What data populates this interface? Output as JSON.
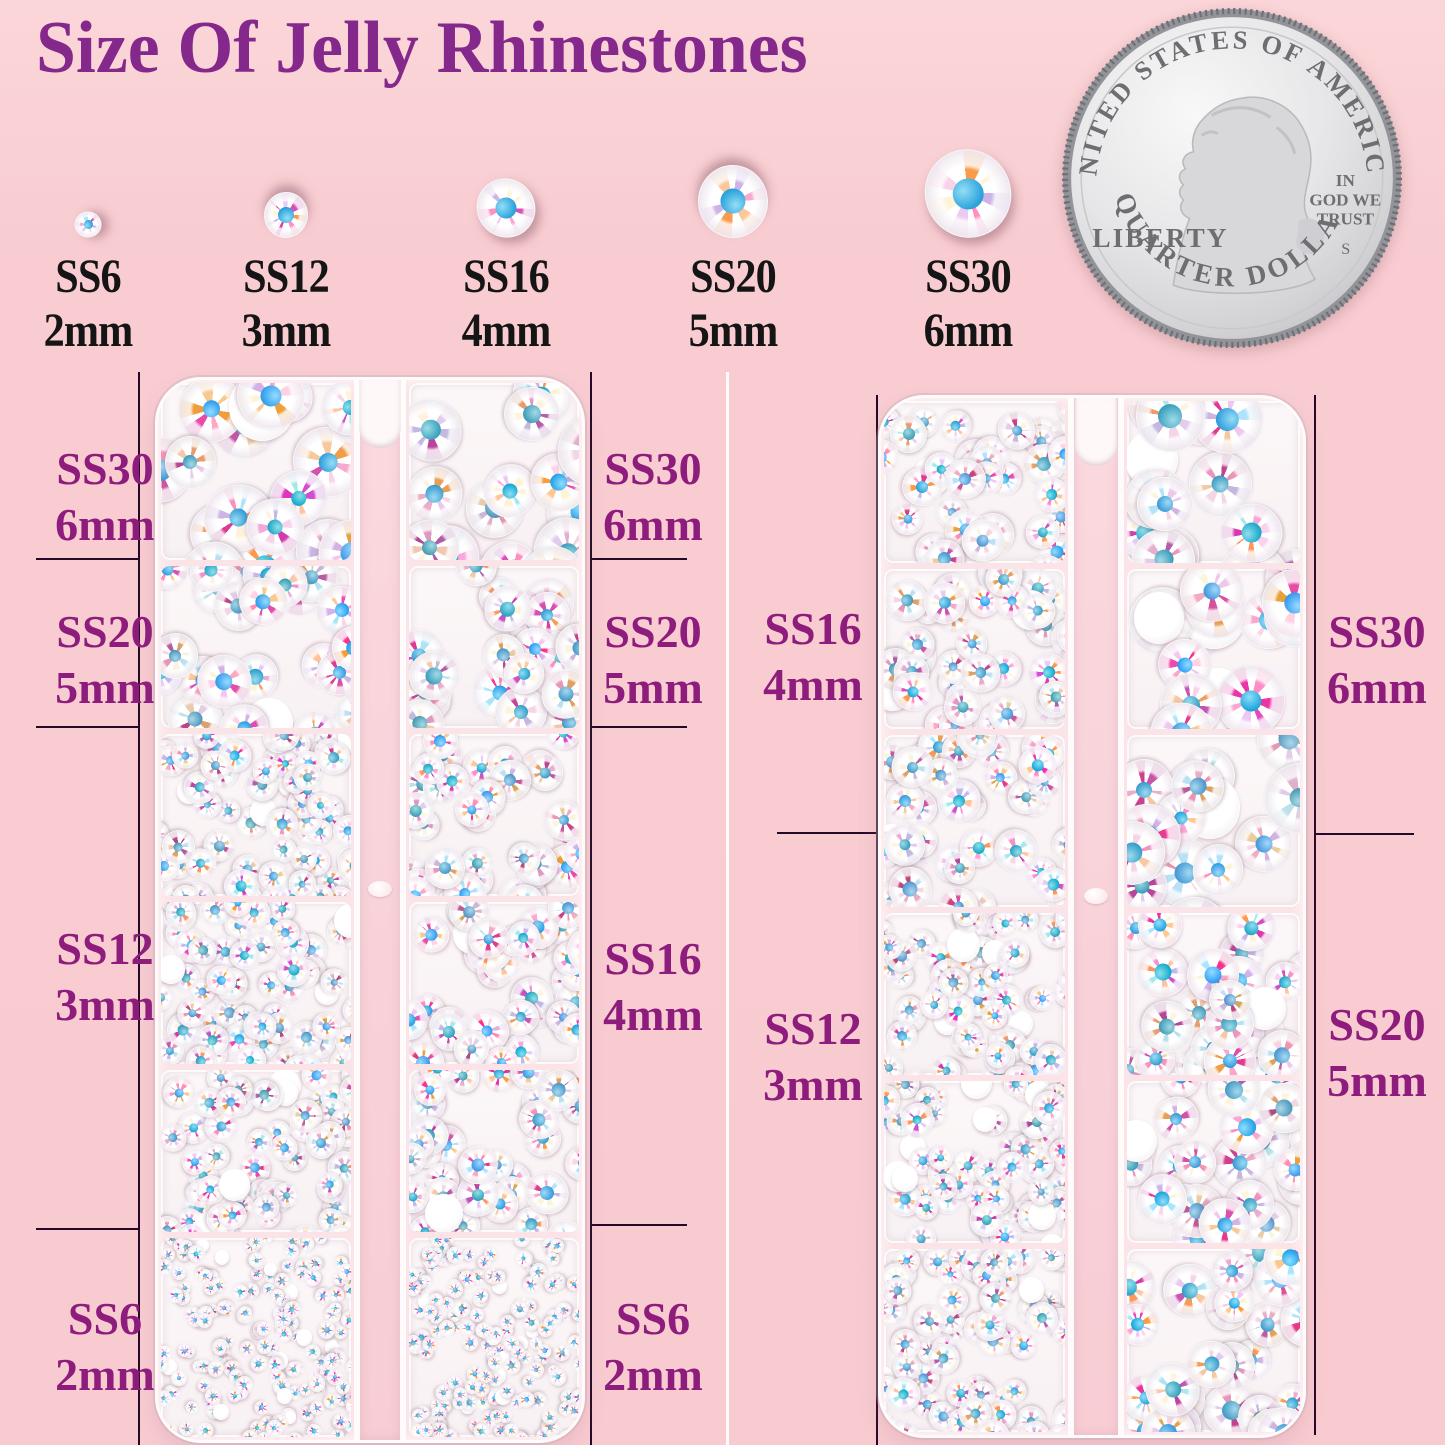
{
  "title": "Size Of Jelly Rhinestones",
  "samples": [
    {
      "code": "SS6",
      "size": "2mm"
    },
    {
      "code": "SS12",
      "size": "3mm"
    },
    {
      "code": "SS16",
      "size": "4mm"
    },
    {
      "code": "SS20",
      "size": "5mm"
    },
    {
      "code": "SS30",
      "size": "6mm"
    }
  ],
  "coin": {
    "top": "UNITED STATES OF AMERICA",
    "left": "LIBERTY",
    "motto": [
      "IN",
      "GOD WE",
      "TRUST"
    ],
    "mint": "S",
    "bottom": "QUARTER DOLLAR"
  },
  "box1": {
    "left_labels": [
      {
        "code": "SS30",
        "size": "6mm"
      },
      {
        "code": "SS20",
        "size": "5mm"
      },
      {
        "code": "SS12",
        "size": "3mm"
      },
      {
        "code": "SS6",
        "size": "2mm"
      }
    ],
    "right_labels": [
      {
        "code": "SS30",
        "size": "6mm"
      },
      {
        "code": "SS20",
        "size": "5mm"
      },
      {
        "code": "SS16",
        "size": "4mm"
      },
      {
        "code": "SS6",
        "size": "2mm"
      }
    ],
    "rows": [
      [
        "SS30",
        "SS30"
      ],
      [
        "SS20",
        "SS20"
      ],
      [
        "SS12",
        "SS16"
      ],
      [
        "SS12",
        "SS16"
      ],
      [
        "SS12",
        "SS16"
      ],
      [
        "SS6",
        "SS6"
      ]
    ]
  },
  "box2": {
    "left_labels": [
      {
        "code": "SS16",
        "size": "4mm"
      },
      {
        "code": "SS12",
        "size": "3mm"
      }
    ],
    "right_labels": [
      {
        "code": "SS30",
        "size": "6mm"
      },
      {
        "code": "SS20",
        "size": "5mm"
      }
    ],
    "rows": [
      [
        "SS16",
        "SS30"
      ],
      [
        "SS16",
        "SS30"
      ],
      [
        "SS16",
        "SS30"
      ],
      [
        "SS12",
        "SS20"
      ],
      [
        "SS12",
        "SS20"
      ],
      [
        "SS12",
        "SS20"
      ]
    ]
  },
  "colors": {
    "background": "#f8ccd1",
    "title": "#84288c",
    "label": "#8d1c7c",
    "line": "#240a28",
    "stone_center": "#2ea4dc",
    "facets": [
      "#e2389b",
      "#d94fb6",
      "#f6a8cf",
      "#fbd3e8",
      "#f89b4b",
      "#fcc79a",
      "#fff3d8",
      "#ace4f6",
      "#cdb4e8",
      "#ecc9f0",
      "#ff8fc0"
    ]
  }
}
